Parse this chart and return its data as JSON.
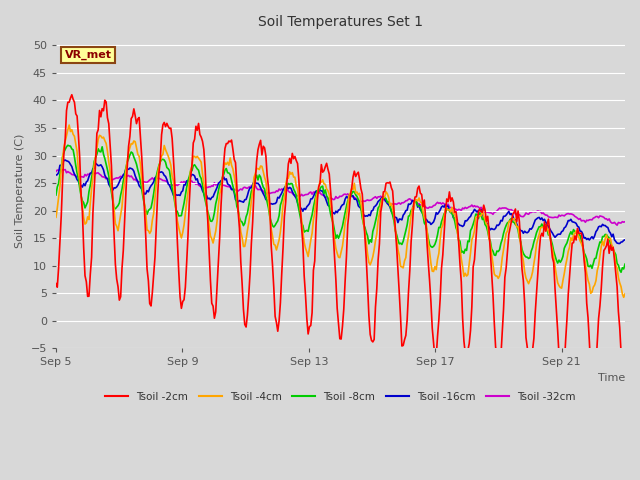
{
  "title": "Soil Temperatures Set 1",
  "xlabel": "Time",
  "ylabel": "Soil Temperature (C)",
  "ylim": [
    -5,
    52
  ],
  "yticks": [
    -5,
    0,
    5,
    10,
    15,
    20,
    25,
    30,
    35,
    40,
    45,
    50
  ],
  "bg_color": "#d8d8d8",
  "plot_bg_color": "#d8d8d8",
  "grid_color": "#ffffff",
  "annotation_label": "VR_met",
  "annotation_box_color": "#ffff99",
  "annotation_border_color": "#8B4513",
  "series_colors": {
    "Tsoil -2cm": "#ff0000",
    "Tsoil -4cm": "#ffa500",
    "Tsoil -8cm": "#00cc00",
    "Tsoil -16cm": "#0000cc",
    "Tsoil -32cm": "#cc00cc"
  },
  "xtick_labels": [
    "Sep 5",
    "Sep 9",
    "Sep 13",
    "Sep 17",
    "Sep 21"
  ],
  "xtick_positions": [
    0,
    4,
    8,
    12,
    16
  ],
  "n_days": 18
}
